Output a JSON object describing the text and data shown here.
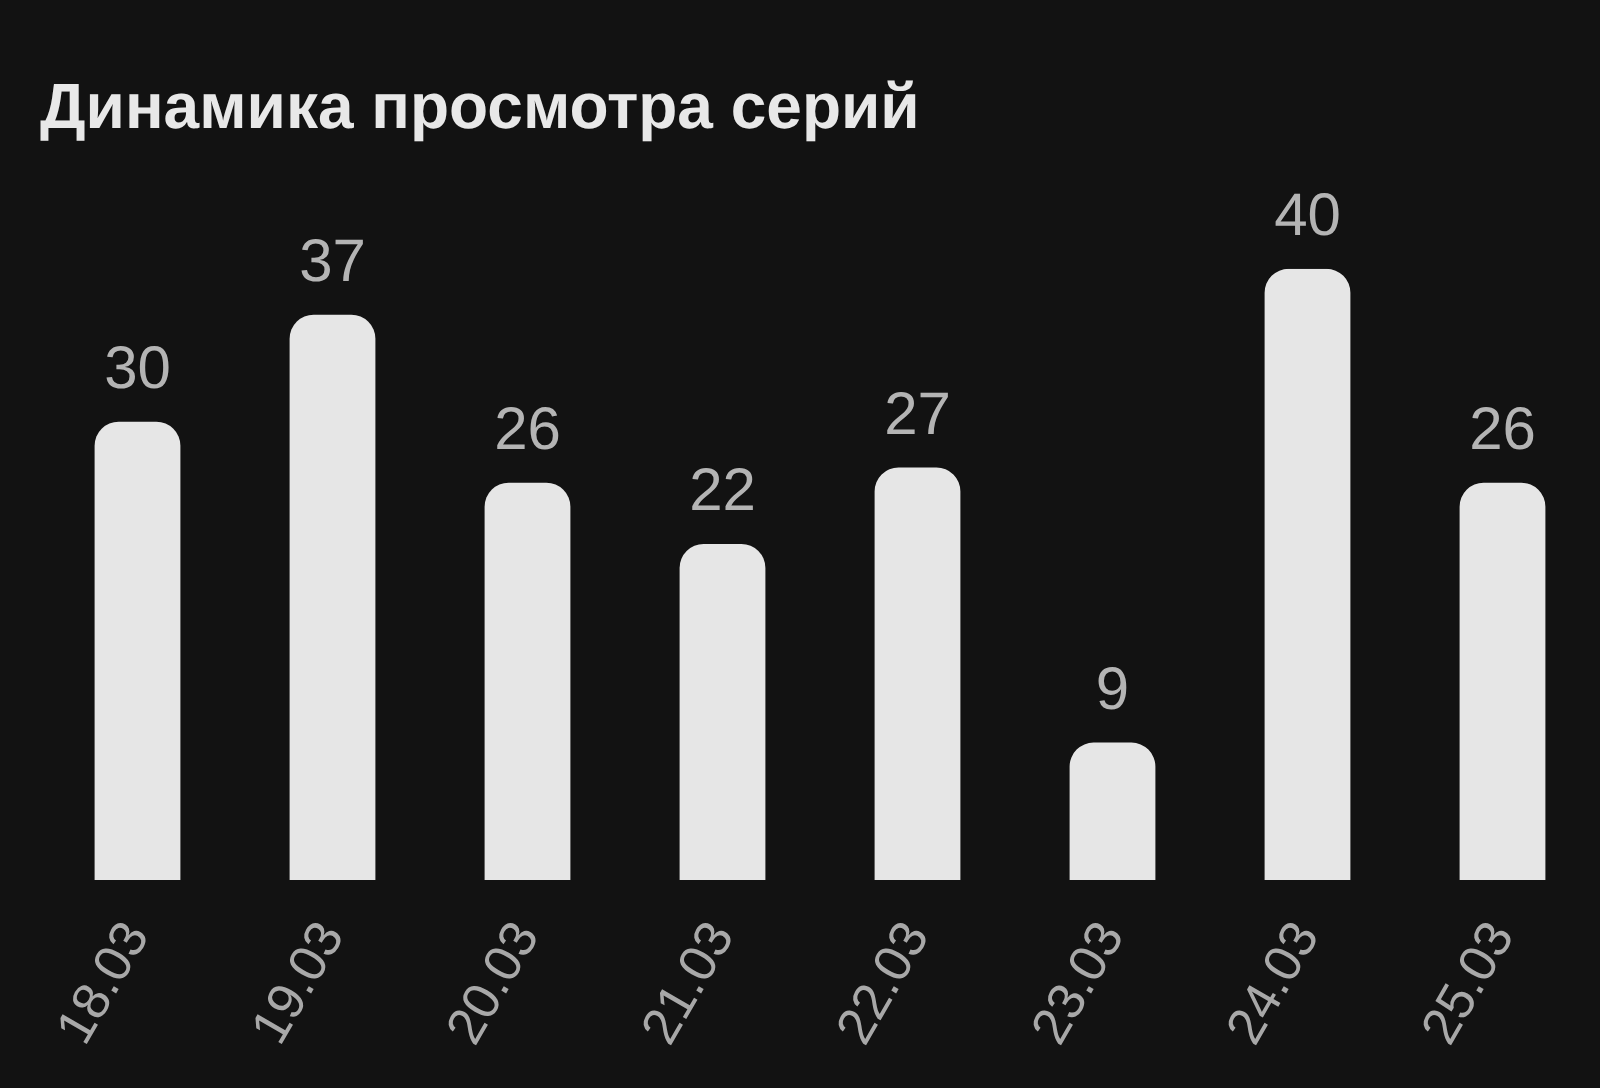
{
  "chart_data": {
    "type": "bar",
    "title": "Динамика просмотра серий",
    "categories": [
      "18.03",
      "19.03",
      "20.03",
      "21.03",
      "22.03",
      "23.03",
      "24.03",
      "25.03"
    ],
    "values": [
      30,
      37,
      26,
      22,
      27,
      9,
      40,
      26
    ],
    "color": "#e6e6e6",
    "data_labels": true
  }
}
